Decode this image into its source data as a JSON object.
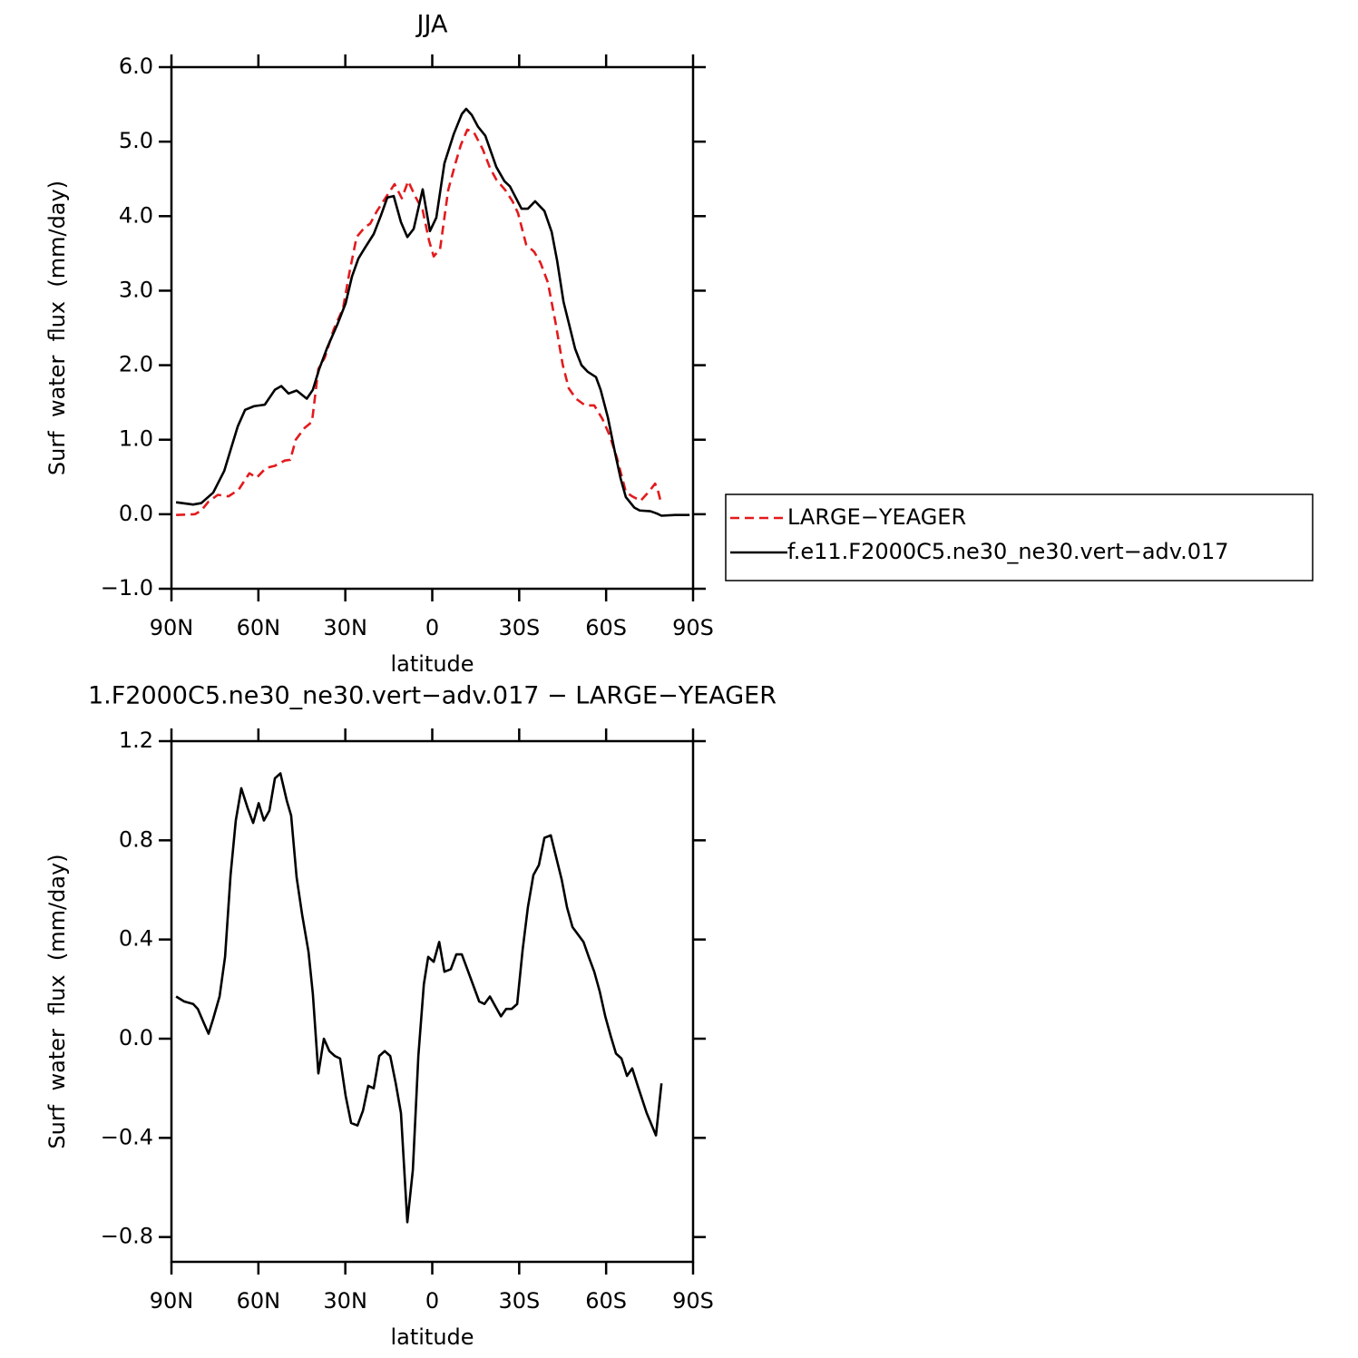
{
  "chart_data": [
    {
      "type": "line",
      "title": "JJA",
      "xlabel": "latitude",
      "ylabel": "Surf  water  flux  (mm/day)",
      "xlim": [
        90,
        -90
      ],
      "ylim": [
        -1,
        6
      ],
      "xticks": [
        {
          "value": 90,
          "label": "90N"
        },
        {
          "value": 60,
          "label": "60N"
        },
        {
          "value": 30,
          "label": "30N"
        },
        0,
        {
          "value": -30,
          "label": "30S"
        },
        {
          "value": -60,
          "label": "60S"
        },
        {
          "value": -90,
          "label": "90S"
        }
      ],
      "yticks": [
        {
          "value": -1,
          "label": "−1.0"
        },
        {
          "value": 0,
          "label": "0.0"
        },
        {
          "value": 1,
          "label": "1.0"
        },
        {
          "value": 2,
          "label": "2.0"
        },
        {
          "value": 3,
          "label": "3.0"
        },
        {
          "value": 4,
          "label": "4.0"
        },
        {
          "value": 5,
          "label": "5.0"
        },
        {
          "value": 6,
          "label": "6.0"
        }
      ],
      "legend": "outside right",
      "series": [
        {
          "name": "LARGE−YEAGER",
          "color": "#e31a1c",
          "linestyle": "dashed",
          "x": [
            88.4,
            81.9,
            79.7,
            77.2,
            74.0,
            70.3,
            66.8,
            63.1,
            60.6,
            57.4,
            54.3,
            50.9,
            49.0,
            47.1,
            44.0,
            41.5,
            39.3,
            37.1,
            34.0,
            30.8,
            28.6,
            26.1,
            23.3,
            21.4,
            19.2,
            16.4,
            13.0,
            10.5,
            8.3,
            5.8,
            3.3,
            1.1,
            -0.5,
            -2.7,
            -5.5,
            -8.0,
            -9.9,
            -12.1,
            -14.3,
            -17.4,
            -19.9,
            -22.1,
            -25.2,
            -27.7,
            -29.6,
            -32.4,
            -35.2,
            -37.4,
            -39.9,
            -42.5,
            -45.0,
            -47.1,
            -49.6,
            -52.8,
            -55.9,
            -58.7,
            -61.2,
            -63.7,
            -66.8,
            -69.0,
            -71.9,
            -74.7,
            -76.9,
            -77.8,
            -79.1
          ],
          "values": [
            -0.01,
            0.0,
            0.05,
            0.17,
            0.26,
            0.24,
            0.33,
            0.55,
            0.49,
            0.62,
            0.65,
            0.72,
            0.73,
            1.0,
            1.16,
            1.24,
            1.95,
            2.1,
            2.48,
            2.76,
            3.24,
            3.72,
            3.85,
            3.9,
            4.06,
            4.23,
            4.43,
            4.24,
            4.47,
            4.26,
            4.08,
            3.67,
            3.46,
            3.56,
            4.35,
            4.71,
            4.96,
            5.16,
            5.13,
            4.9,
            4.65,
            4.49,
            4.35,
            4.2,
            4.04,
            3.62,
            3.52,
            3.37,
            3.11,
            2.58,
            2.01,
            1.69,
            1.55,
            1.46,
            1.46,
            1.28,
            1.06,
            0.76,
            0.3,
            0.24,
            0.18,
            0.3,
            0.41,
            0.33,
            0.13
          ]
        },
        {
          "name": "f.e11.F2000C5.ne30_ne30.vert−adv.017",
          "color": "#000000",
          "linestyle": "solid",
          "x": [
            88.4,
            82.5,
            79.7,
            75.6,
            71.8,
            69.3,
            67.1,
            64.6,
            61.5,
            57.8,
            54.3,
            52.1,
            49.6,
            46.8,
            43.3,
            41.2,
            39.0,
            36.2,
            32.7,
            29.9,
            27.7,
            25.5,
            23.3,
            20.2,
            17.7,
            15.5,
            13.3,
            10.8,
            8.6,
            6.4,
            3.3,
            0.8,
            -1.4,
            -4.2,
            -7.4,
            -10.2,
            -11.7,
            -13.6,
            -15.8,
            -18.3,
            -22.1,
            -24.9,
            -26.8,
            -30.8,
            -33.0,
            -35.5,
            -38.7,
            -41.2,
            -43.1,
            -45.3,
            -47.4,
            -49.3,
            -51.5,
            -53.7,
            -56.5,
            -58.1,
            -60.6,
            -63.1,
            -65.0,
            -66.8,
            -69.7,
            -71.6,
            -75.3,
            -77.5,
            -79.1,
            -83.8,
            -88.8
          ],
          "values": [
            0.16,
            0.13,
            0.15,
            0.29,
            0.58,
            0.9,
            1.18,
            1.4,
            1.45,
            1.47,
            1.67,
            1.72,
            1.62,
            1.66,
            1.55,
            1.67,
            1.95,
            2.24,
            2.55,
            2.83,
            3.19,
            3.43,
            3.57,
            3.76,
            4.01,
            4.25,
            4.27,
            3.92,
            3.72,
            3.83,
            4.36,
            3.8,
            3.98,
            4.71,
            5.1,
            5.37,
            5.44,
            5.36,
            5.2,
            5.08,
            4.66,
            4.47,
            4.4,
            4.1,
            4.1,
            4.2,
            4.07,
            3.79,
            3.4,
            2.85,
            2.52,
            2.22,
            2.0,
            1.91,
            1.84,
            1.67,
            1.3,
            0.82,
            0.48,
            0.23,
            0.09,
            0.05,
            0.04,
            0.01,
            -0.02,
            -0.01,
            -0.01
          ]
        }
      ]
    },
    {
      "type": "line",
      "title": "1.F2000C5.ne30_ne30.vert−adv.017 − LARGE−YEAGER",
      "xlabel": "latitude",
      "ylabel": "Surf  water  flux  (mm/day)",
      "xlim": [
        90,
        -90
      ],
      "ylim": [
        -0.9,
        1.2
      ],
      "xticks": [
        {
          "value": 90,
          "label": "90N"
        },
        {
          "value": 60,
          "label": "60N"
        },
        {
          "value": 30,
          "label": "30N"
        },
        0,
        {
          "value": -30,
          "label": "30S"
        },
        {
          "value": -60,
          "label": "60S"
        },
        {
          "value": -90,
          "label": "90S"
        }
      ],
      "yticks": [
        {
          "value": -0.8,
          "label": "−0.8"
        },
        {
          "value": -0.4,
          "label": "−0.4"
        },
        {
          "value": 0,
          "label": "0.0"
        },
        0.4,
        0.8,
        1.2
      ],
      "series": [
        {
          "color": "#000000",
          "linestyle": "solid",
          "x": [
            88.4,
            85.6,
            82.5,
            80.9,
            78.7,
            77.2,
            75.6,
            73.4,
            71.5,
            69.6,
            67.8,
            65.9,
            63.7,
            61.8,
            59.9,
            58.1,
            56.2,
            54.3,
            52.4,
            50.2,
            48.7,
            46.8,
            44.9,
            42.7,
            41.2,
            39.3,
            37.4,
            35.5,
            33.6,
            31.8,
            29.9,
            28.0,
            25.8,
            23.9,
            22.1,
            20.2,
            18.3,
            16.4,
            14.5,
            12.6,
            10.8,
            8.6,
            6.7,
            4.8,
            2.9,
            1.4,
            -0.5,
            -2.4,
            -4.2,
            -6.4,
            -8.3,
            -10.2,
            -12.1,
            -14.0,
            -16.2,
            -18.0,
            -19.9,
            -21.8,
            -23.7,
            -25.5,
            -27.4,
            -29.3,
            -31.2,
            -33.0,
            -34.9,
            -36.8,
            -38.7,
            -40.9,
            -42.8,
            -44.7,
            -46.5,
            -48.4,
            -50.3,
            -52.2,
            -54.0,
            -55.9,
            -57.8,
            -59.7,
            -61.6,
            -63.4,
            -65.3,
            -67.2,
            -69.0,
            -70.9,
            -74.0,
            -77.2,
            -79.1
          ],
          "values": [
            0.17,
            0.15,
            0.14,
            0.12,
            0.06,
            0.02,
            0.08,
            0.17,
            0.33,
            0.66,
            0.88,
            1.01,
            0.93,
            0.87,
            0.95,
            0.88,
            0.92,
            1.05,
            1.07,
            0.96,
            0.9,
            0.65,
            0.5,
            0.35,
            0.18,
            -0.14,
            0.0,
            -0.05,
            -0.07,
            -0.08,
            -0.23,
            -0.34,
            -0.35,
            -0.29,
            -0.19,
            -0.2,
            -0.07,
            -0.05,
            -0.07,
            -0.18,
            -0.3,
            -0.74,
            -0.53,
            -0.07,
            0.22,
            0.33,
            0.31,
            0.39,
            0.27,
            0.28,
            0.34,
            0.34,
            0.28,
            0.22,
            0.15,
            0.14,
            0.17,
            0.13,
            0.09,
            0.12,
            0.12,
            0.14,
            0.36,
            0.53,
            0.66,
            0.7,
            0.81,
            0.82,
            0.73,
            0.64,
            0.53,
            0.45,
            0.42,
            0.39,
            0.33,
            0.27,
            0.19,
            0.09,
            0.01,
            -0.06,
            -0.08,
            -0.15,
            -0.12,
            -0.19,
            -0.3,
            -0.39,
            -0.18
          ]
        }
      ]
    }
  ]
}
